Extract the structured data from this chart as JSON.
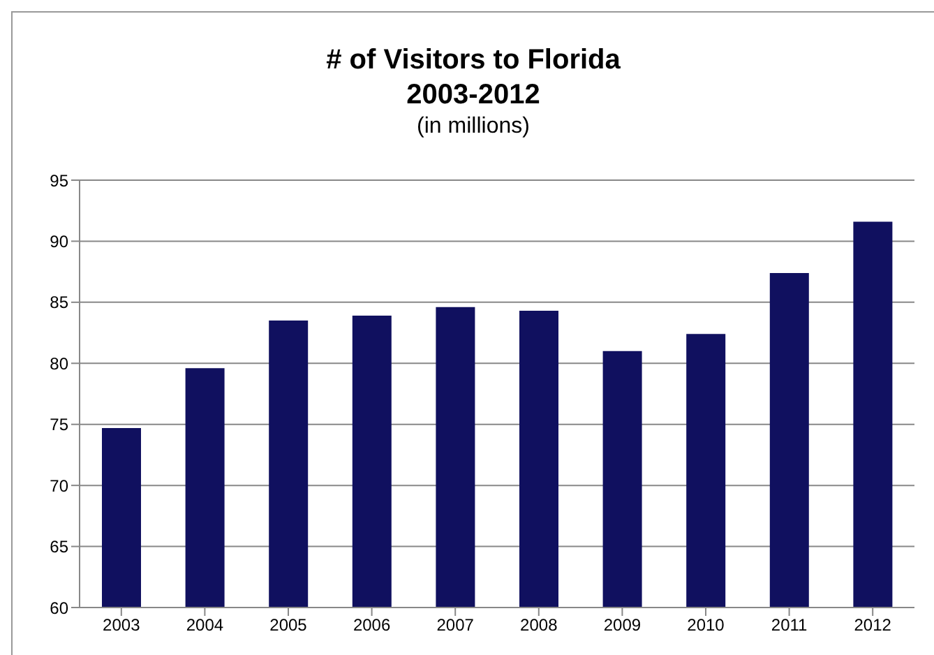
{
  "chart_data": {
    "type": "bar",
    "title": "# of Visitors to Florida\n2003-2012",
    "subtitle": "(in millions)",
    "categories": [
      "2003",
      "2004",
      "2005",
      "2006",
      "2007",
      "2008",
      "2009",
      "2010",
      "2011",
      "2012"
    ],
    "values": [
      74.7,
      79.6,
      83.5,
      83.9,
      84.6,
      84.3,
      81.0,
      82.4,
      87.4,
      91.6
    ],
    "color": "#10105f",
    "ylim": [
      60,
      95
    ],
    "yticks": [
      60,
      65,
      70,
      75,
      80,
      85,
      90,
      95
    ],
    "grid": "y"
  }
}
